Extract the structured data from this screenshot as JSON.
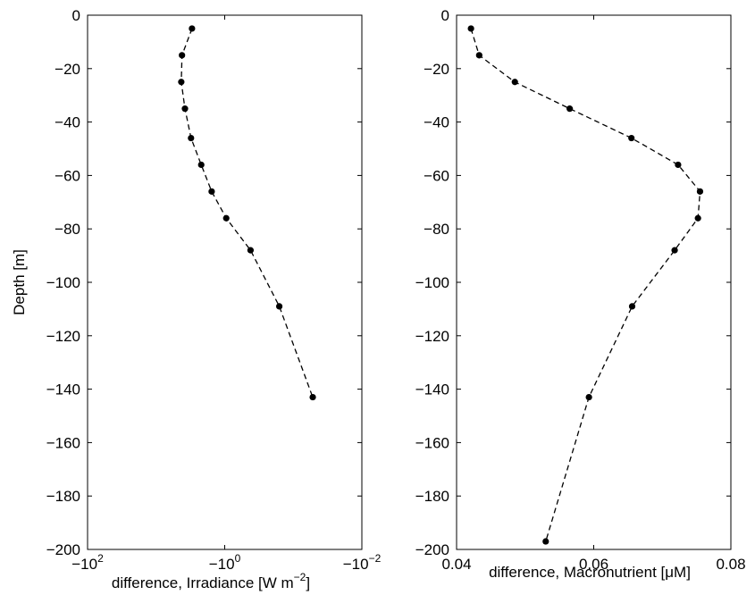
{
  "chart_data": [
    {
      "type": "line",
      "ylabel": "Depth [m]",
      "xlabel": "difference, Irradiance [W m",
      "xlabel_superscript": "−2",
      "xlabel_suffix": "]",
      "xscale": "symlog-negative",
      "xlim": [
        -100,
        -0.01
      ],
      "ylim": [
        -200,
        0
      ],
      "grid": false,
      "line_style": "dashed",
      "marker": "dot",
      "x_ticks": [
        "−10",
        "−10",
        "−10"
      ],
      "x_tick_exponents": [
        "2",
        "0",
        "−2"
      ],
      "y_ticks": [
        "0",
        "−20",
        "−40",
        "−60",
        "−80",
        "−100",
        "−120",
        "−140",
        "−160",
        "−180",
        "−200"
      ],
      "series": [
        {
          "x": [
            -3.0,
            -4.2,
            -4.3,
            -3.8,
            -3.1,
            -2.2,
            -1.55,
            -0.95,
            -0.42,
            -0.16,
            -0.052
          ],
          "y": [
            -5,
            -15,
            -25,
            -35,
            -46,
            -56,
            -66,
            -76,
            -88,
            -109,
            -143
          ]
        }
      ]
    },
    {
      "type": "line",
      "ylabel": "",
      "xlabel": "difference, Macronutrient [μM]",
      "xlim": [
        0.04,
        0.08
      ],
      "ylim": [
        -200,
        0
      ],
      "grid": false,
      "line_style": "dashed",
      "marker": "dot",
      "x_ticks": [
        "0.04",
        "0.06",
        "0.08"
      ],
      "y_ticks": [
        "0",
        "−20",
        "−40",
        "−60",
        "−80",
        "−100",
        "−120",
        "−140",
        "−160",
        "−180",
        "−200"
      ],
      "series": [
        {
          "x": [
            0.0421,
            0.0433,
            0.0485,
            0.0565,
            0.0655,
            0.0723,
            0.0755,
            0.0752,
            0.0718,
            0.0656,
            0.0593,
            0.053
          ],
          "y": [
            -5,
            -15,
            -25,
            -35,
            -46,
            -56,
            -66,
            -76,
            -88,
            -109,
            -143,
            -197
          ]
        }
      ]
    }
  ]
}
